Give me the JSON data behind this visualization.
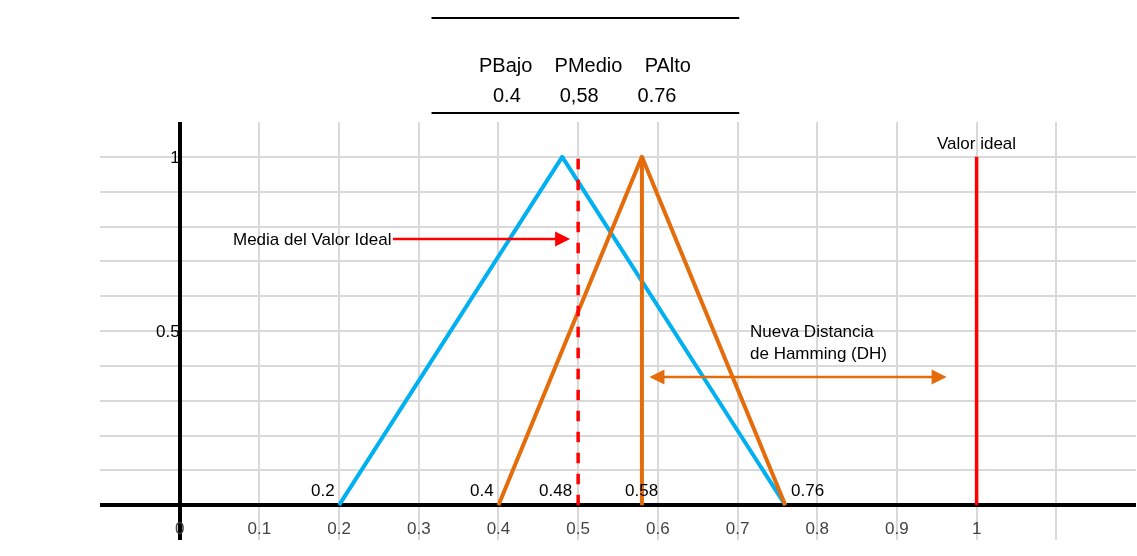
{
  "chart_data": {
    "type": "line",
    "title": "PBajo PMedio PAlto",
    "subtitle": "0.4 0,58 0.76",
    "series": [
      {
        "color": "#00b0f0",
        "x": [
          0.2,
          0.48,
          0.76
        ],
        "values": [
          0,
          1,
          0
        ]
      },
      {
        "color": "#e46c0a",
        "x": [
          0.4,
          0.58,
          0.76
        ],
        "values": [
          0,
          1,
          0
        ]
      },
      {
        "color": "#e46c0a",
        "x": [
          0.58,
          0.58
        ],
        "values": [
          0,
          1
        ]
      }
    ],
    "xlim": [
      -0.1,
      1.2
    ],
    "xticks": [
      0,
      0.1,
      0.2,
      0.3,
      0.4,
      0.5,
      0.6,
      0.7,
      0.8,
      0.9,
      1,
      {
        "value": 1.1,
        "label": null
      }
    ],
    "ylim": [
      -0.1,
      1.1
    ],
    "yticks": [
      {
        "value": 0,
        "label": null
      },
      {
        "value": 0.1,
        "label": null
      },
      {
        "value": 0.2,
        "label": null
      },
      {
        "value": 0.3,
        "label": null
      },
      {
        "value": 0.4,
        "label": null
      },
      0.5,
      {
        "value": 0.6,
        "label": null
      },
      {
        "value": 0.7,
        "label": null
      },
      {
        "value": 0.8,
        "label": null
      },
      {
        "value": 0.9,
        "label": null
      },
      1
    ],
    "ref_lines": [
      {
        "axis": "x",
        "value": 0.5,
        "label": "Media del Valor Ideal",
        "color": "#ff0000",
        "line_style": "dashed"
      },
      {
        "axis": "x",
        "value": 1,
        "label": "Valor ideal",
        "color": "#ff0000",
        "line_style": "solid"
      }
    ],
    "annotations": [
      {
        "text": "0.2",
        "x": 0.2,
        "y": 0
      },
      {
        "text": "0.4",
        "x": 0.4,
        "y": 0
      },
      "0.48",
      {
        "text": "0.58",
        "x": 0.58,
        "y": 0
      },
      {
        "text": "0.76",
        "x": 0.76,
        "y": 0
      },
      "Nueva Distancia\nde Hamming (DH)"
    ],
    "grid": true,
    "marker": "none",
    "line_style": "solid"
  }
}
